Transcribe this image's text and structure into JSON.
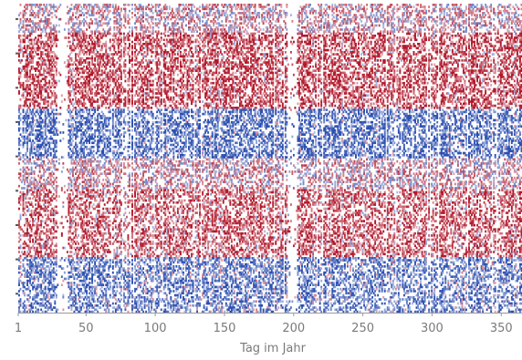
{
  "chart_data": {
    "type": "heatmap",
    "title": "",
    "xlabel": "Tag im Jahr",
    "ylabel": "",
    "x_ticks": [
      1,
      50,
      100,
      150,
      200,
      250,
      300,
      350
    ],
    "xlim": [
      1,
      365
    ],
    "rows": 9,
    "x_axis_range_note": "daily columns 1–365",
    "colors": {
      "positive": "#b2182b",
      "negative": "#2c4fb0",
      "neutral": "#ffffff",
      "tick_text": "#7a7a7a",
      "axis_line": "#9a9a9a"
    },
    "legend": "none",
    "grid": false
  }
}
